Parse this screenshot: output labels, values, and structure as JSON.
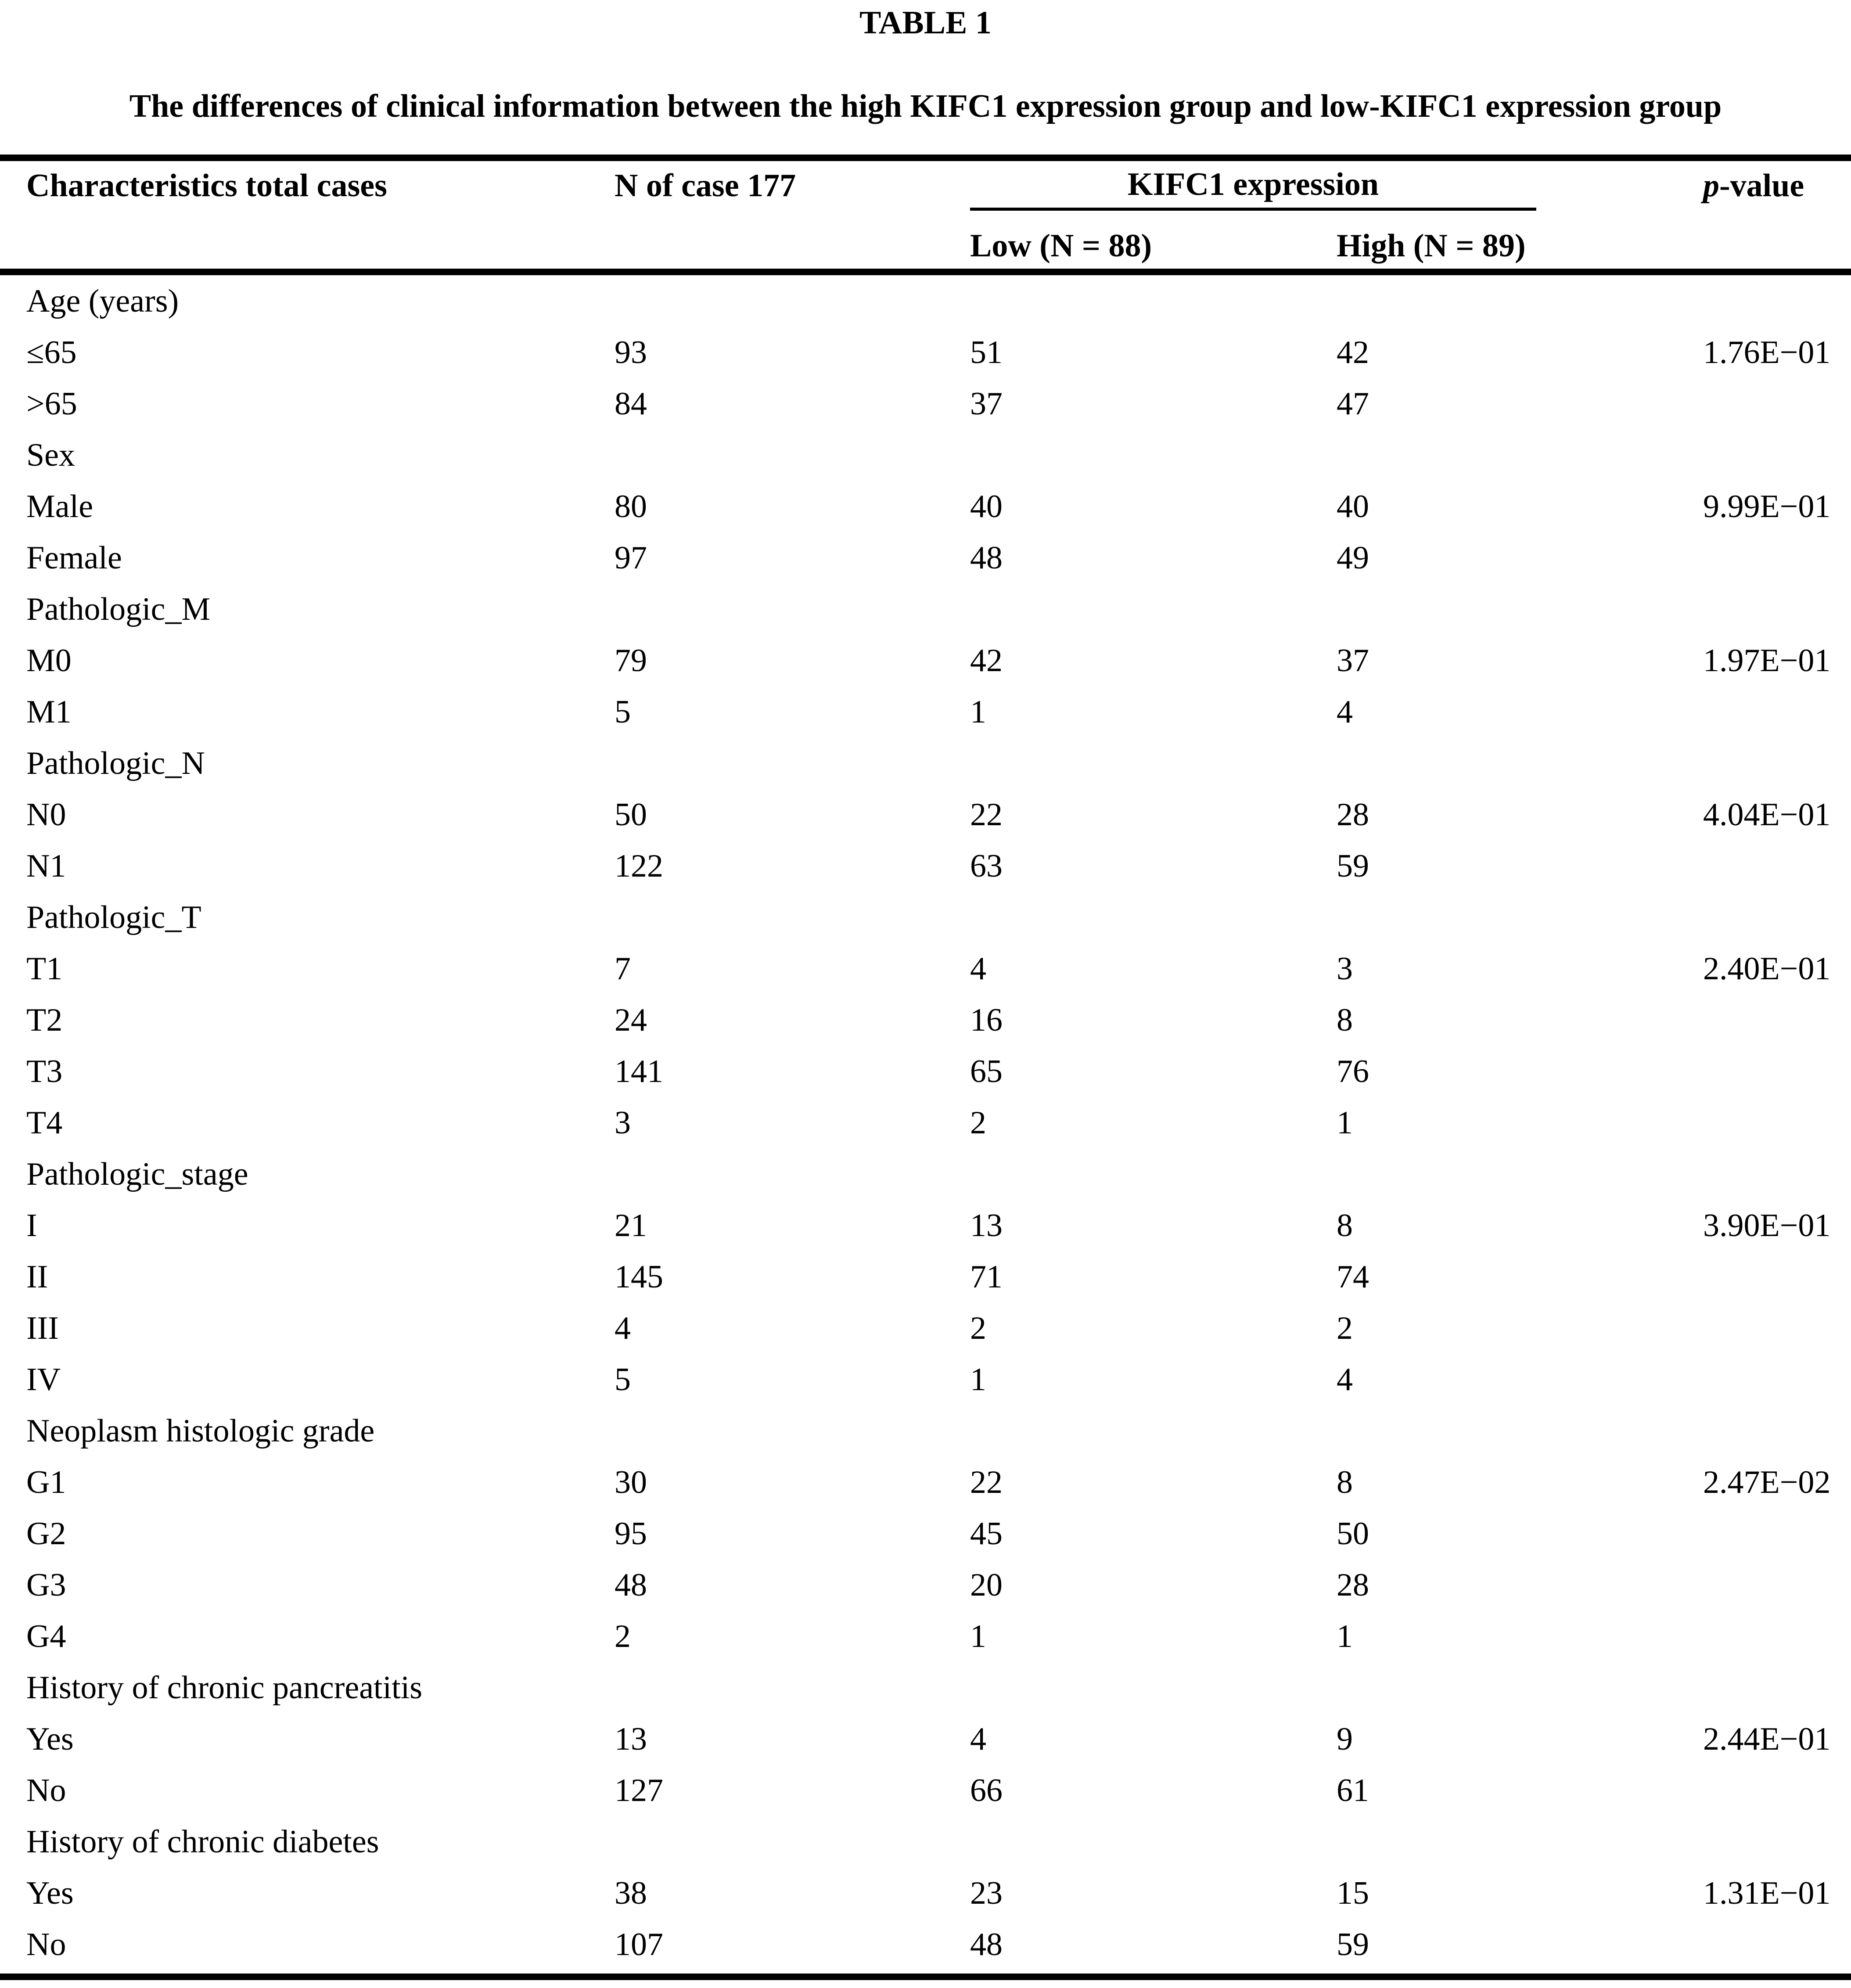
{
  "table_label": "TABLE 1",
  "title": "The differences of clinical information between the high KIFC1 expression group and low-KIFC1 expression group",
  "header": {
    "characteristics": "Characteristics total cases",
    "n_of_case": "N of case 177",
    "kifc1_expression": "KIFC1 expression",
    "low": "Low (N = 88)",
    "high": "High (N = 89)",
    "p_italic": "p",
    "p_rest": "-value"
  },
  "rows": [
    {
      "label": "Age (years)",
      "n": "",
      "low": "",
      "high": "",
      "p": ""
    },
    {
      "label": "≤65",
      "n": "93",
      "low": "51",
      "high": "42",
      "p": "1.76E−01"
    },
    {
      "label": ">65",
      "n": "84",
      "low": "37",
      "high": "47",
      "p": ""
    },
    {
      "label": "Sex",
      "n": "",
      "low": "",
      "high": "",
      "p": ""
    },
    {
      "label": "Male",
      "n": "80",
      "low": "40",
      "high": "40",
      "p": "9.99E−01"
    },
    {
      "label": "Female",
      "n": "97",
      "low": "48",
      "high": "49",
      "p": ""
    },
    {
      "label": "Pathologic_M",
      "n": "",
      "low": "",
      "high": "",
      "p": ""
    },
    {
      "label": "M0",
      "n": "79",
      "low": "42",
      "high": "37",
      "p": "1.97E−01"
    },
    {
      "label": "M1",
      "n": "5",
      "low": "1",
      "high": "4",
      "p": ""
    },
    {
      "label": "Pathologic_N",
      "n": "",
      "low": "",
      "high": "",
      "p": ""
    },
    {
      "label": "N0",
      "n": "50",
      "low": "22",
      "high": "28",
      "p": "4.04E−01"
    },
    {
      "label": "N1",
      "n": "122",
      "low": "63",
      "high": "59",
      "p": ""
    },
    {
      "label": "Pathologic_T",
      "n": "",
      "low": "",
      "high": "",
      "p": ""
    },
    {
      "label": "T1",
      "n": "7",
      "low": "4",
      "high": "3",
      "p": "2.40E−01"
    },
    {
      "label": "T2",
      "n": "24",
      "low": "16",
      "high": "8",
      "p": ""
    },
    {
      "label": "T3",
      "n": "141",
      "low": "65",
      "high": "76",
      "p": ""
    },
    {
      "label": "T4",
      "n": "3",
      "low": "2",
      "high": "1",
      "p": ""
    },
    {
      "label": "Pathologic_stage",
      "n": "",
      "low": "",
      "high": "",
      "p": ""
    },
    {
      "label": "I",
      "n": "21",
      "low": "13",
      "high": "8",
      "p": "3.90E−01"
    },
    {
      "label": "II",
      "n": "145",
      "low": "71",
      "high": "74",
      "p": ""
    },
    {
      "label": "III",
      "n": "4",
      "low": "2",
      "high": "2",
      "p": ""
    },
    {
      "label": "IV",
      "n": "5",
      "low": "1",
      "high": "4",
      "p": ""
    },
    {
      "label": "Neoplasm histologic grade",
      "n": "",
      "low": "",
      "high": "",
      "p": ""
    },
    {
      "label": "G1",
      "n": "30",
      "low": "22",
      "high": "8",
      "p": "2.47E−02"
    },
    {
      "label": "G2",
      "n": "95",
      "low": "45",
      "high": "50",
      "p": ""
    },
    {
      "label": "G3",
      "n": "48",
      "low": "20",
      "high": "28",
      "p": ""
    },
    {
      "label": "G4",
      "n": "2",
      "low": "1",
      "high": "1",
      "p": ""
    },
    {
      "label": "History of chronic pancreatitis",
      "n": "",
      "low": "",
      "high": "",
      "p": ""
    },
    {
      "label": "Yes",
      "n": "13",
      "low": "4",
      "high": "9",
      "p": "2.44E−01"
    },
    {
      "label": "No",
      "n": "127",
      "low": "66",
      "high": "61",
      "p": ""
    },
    {
      "label": "History of chronic diabetes",
      "n": "",
      "low": "",
      "high": "",
      "p": ""
    },
    {
      "label": "Yes",
      "n": "38",
      "low": "23",
      "high": "15",
      "p": "1.31E−01"
    },
    {
      "label": "No",
      "n": "107",
      "low": "48",
      "high": "59",
      "p": ""
    }
  ]
}
